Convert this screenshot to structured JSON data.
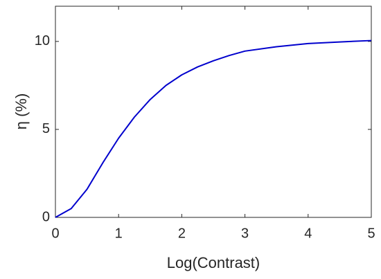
{
  "chart_data": {
    "type": "line",
    "x_label": "Log(Contrast)",
    "y_label": "η (%)",
    "x": [
      0,
      0.25,
      0.5,
      0.75,
      1,
      1.25,
      1.5,
      1.75,
      2,
      2.25,
      2.5,
      2.75,
      3,
      3.5,
      4,
      4.5,
      5
    ],
    "series": [
      {
        "color": "#0000cd",
        "values": [
          0,
          0.5,
          1.6,
          3.1,
          4.5,
          5.7,
          6.7,
          7.5,
          8.1,
          8.55,
          8.9,
          9.2,
          9.45,
          9.7,
          9.88,
          9.97,
          10.05
        ]
      }
    ],
    "xlim": [
      0,
      5
    ],
    "ylim": [
      0,
      12
    ],
    "xticks": [
      0,
      1,
      2,
      3,
      4,
      5
    ],
    "yticks": [
      0,
      5,
      10
    ],
    "grid": false
  }
}
